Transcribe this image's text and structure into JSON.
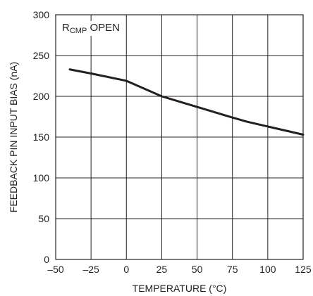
{
  "chart_data": {
    "type": "line",
    "title": "",
    "xlabel": "TEMPERATURE (°C)",
    "ylabel": "FEEDBACK PIN INPUT BIAS (nA)",
    "xlim": [
      -50,
      125
    ],
    "ylim": [
      0,
      300
    ],
    "x_ticks": [
      -50,
      -25,
      0,
      25,
      50,
      75,
      100,
      125
    ],
    "x_tick_labels": [
      "–50",
      "–25",
      "0",
      "25",
      "50",
      "75",
      "100",
      "125"
    ],
    "y_ticks": [
      0,
      50,
      100,
      150,
      200,
      250,
      300
    ],
    "y_tick_labels": [
      "0",
      "50",
      "100",
      "150",
      "200",
      "250",
      "300"
    ],
    "grid": true,
    "annotation": {
      "main": "R",
      "subscript": "CMP",
      "rest": " OPEN"
    },
    "series": [
      {
        "x": [
          -40,
          -25,
          0,
          25,
          50,
          75,
          85,
          100,
          125
        ],
        "y": [
          233,
          228,
          219,
          200,
          187,
          174,
          169,
          163,
          153
        ]
      }
    ],
    "colors": {
      "ink": "#231f20",
      "background": "#ffffff"
    }
  }
}
